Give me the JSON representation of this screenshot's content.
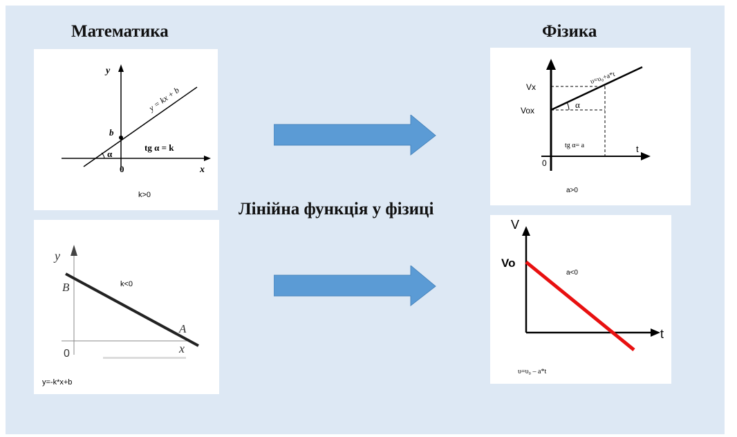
{
  "headings": {
    "math": "Математика",
    "physics": "Фізика",
    "center": "Лінійна функція у фізиці"
  },
  "panel_math_top": {
    "axis_y": "y",
    "axis_x": "x",
    "origin": "0",
    "b_label": "b",
    "alpha": "α",
    "line_label": "y = kx + b",
    "tg_label": "tg α = k",
    "caption": "k>0"
  },
  "panel_math_bottom": {
    "axis_y": "y",
    "axis_x": "x",
    "origin": "0",
    "B_label": "B",
    "A_label": "A",
    "k_label": "k<0",
    "caption": "y=-k*x+b"
  },
  "panel_phys_top": {
    "vx": "Vx",
    "vox": "Vox",
    "alpha": "α",
    "t": "t",
    "origin": "0",
    "formula": "υ=υ₀+a*t",
    "tg_label": "tg α= a",
    "caption": "a>0"
  },
  "panel_phys_bottom": {
    "V": "V",
    "Vo": "Vo",
    "t": "t",
    "a_label": "a<0",
    "formula": "υ=υ₀ – a*t"
  },
  "colors": {
    "background": "#dde8f4",
    "arrow": "#5b9bd5",
    "red_line": "#e81010"
  }
}
